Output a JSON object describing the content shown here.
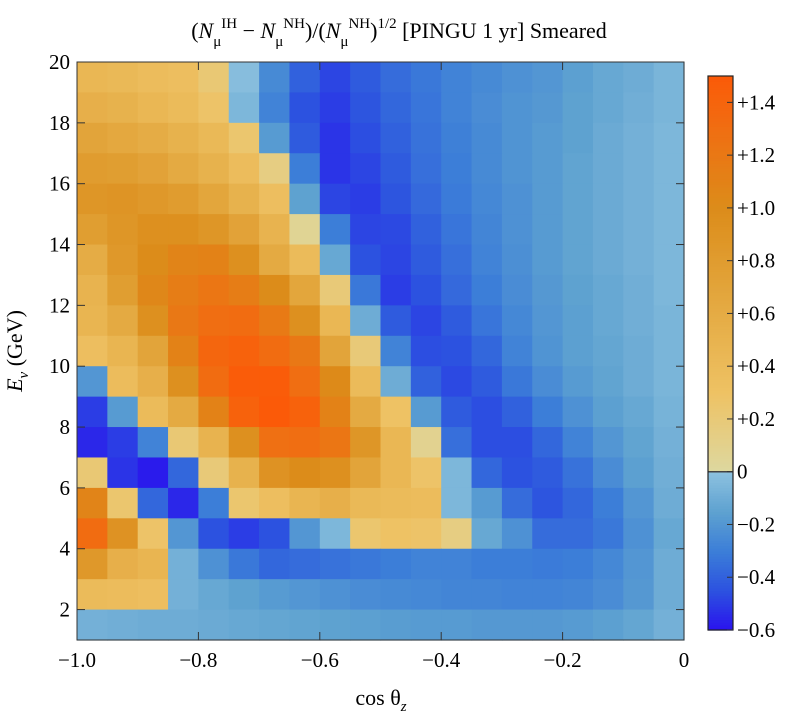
{
  "chart_data": {
    "type": "heatmap",
    "title": {
      "n1": "N",
      "sub1": "μ",
      "sup1": "IH",
      "minus": " − ",
      "n2": "N",
      "sub2": "μ",
      "sup2": "NH",
      "mid": ")/(",
      "n3": "N",
      "sub3": "μ",
      "sup3": "NH",
      "pow": "1/2",
      "tail": " [PINGU 1 yr] Smeared"
    },
    "xlabel": {
      "main": "cos θ",
      "sub": "z"
    },
    "ylabel": {
      "main": "E",
      "sub": "ν",
      "unit": " (GeV)"
    },
    "xlim": [
      -1.0,
      0.0
    ],
    "ylim": [
      1,
      20
    ],
    "x_bins": 20,
    "y_bins": 19,
    "x_ticks": [
      {
        "value": -1.0,
        "label": "−1.0"
      },
      {
        "value": -0.8,
        "label": "−0.8"
      },
      {
        "value": -0.6,
        "label": "−0.6"
      },
      {
        "value": -0.4,
        "label": "−0.4"
      },
      {
        "value": -0.2,
        "label": "−0.2"
      },
      {
        "value": 0.0,
        "label": "0"
      }
    ],
    "y_ticks": [
      {
        "value": 2,
        "label": "2"
      },
      {
        "value": 4,
        "label": "4"
      },
      {
        "value": 6,
        "label": "6"
      },
      {
        "value": 8,
        "label": "8"
      },
      {
        "value": 10,
        "label": "10"
      },
      {
        "value": 12,
        "label": "12"
      },
      {
        "value": 14,
        "label": "14"
      },
      {
        "value": 16,
        "label": "16"
      },
      {
        "value": 18,
        "label": "18"
      },
      {
        "value": 20,
        "label": "20"
      }
    ],
    "colorbar": {
      "range": [
        -0.6,
        1.5
      ],
      "ticks": [
        {
          "value": 1.4,
          "label": "+1.4"
        },
        {
          "value": 1.2,
          "label": "+1.2"
        },
        {
          "value": 1.0,
          "label": "+1.0"
        },
        {
          "value": 0.8,
          "label": "+0.8"
        },
        {
          "value": 0.6,
          "label": "+0.6"
        },
        {
          "value": 0.4,
          "label": "+0.4"
        },
        {
          "value": 0.2,
          "label": "+0.2"
        },
        {
          "value": 0.0,
          "label": "0"
        },
        {
          "value": -0.2,
          "label": "−0.2"
        },
        {
          "value": -0.4,
          "label": "−0.4"
        },
        {
          "value": -0.6,
          "label": "−0.6"
        }
      ]
    },
    "z_rows_top_to_bottom": [
      [
        0.45,
        0.42,
        0.38,
        0.35,
        0.22,
        -0.02,
        -0.25,
        -0.4,
        -0.48,
        -0.42,
        -0.36,
        -0.32,
        -0.28,
        -0.25,
        -0.22,
        -0.2,
        -0.16,
        -0.12,
        -0.1,
        -0.06
      ],
      [
        0.55,
        0.52,
        0.45,
        0.4,
        0.28,
        -0.05,
        -0.28,
        -0.45,
        -0.5,
        -0.44,
        -0.38,
        -0.33,
        -0.28,
        -0.24,
        -0.21,
        -0.19,
        -0.15,
        -0.12,
        -0.09,
        -0.06
      ],
      [
        0.7,
        0.65,
        0.6,
        0.52,
        0.42,
        0.25,
        -0.18,
        -0.42,
        -0.52,
        -0.46,
        -0.4,
        -0.34,
        -0.29,
        -0.25,
        -0.21,
        -0.18,
        -0.15,
        -0.11,
        -0.08,
        -0.05
      ],
      [
        0.8,
        0.78,
        0.72,
        0.62,
        0.52,
        0.38,
        0.15,
        -0.3,
        -0.52,
        -0.48,
        -0.42,
        -0.35,
        -0.3,
        -0.25,
        -0.21,
        -0.18,
        -0.14,
        -0.11,
        -0.08,
        -0.05
      ],
      [
        0.88,
        0.9,
        0.85,
        0.8,
        0.68,
        0.52,
        0.35,
        -0.15,
        -0.48,
        -0.5,
        -0.44,
        -0.37,
        -0.31,
        -0.26,
        -0.22,
        -0.18,
        -0.14,
        -0.11,
        -0.08,
        -0.05
      ],
      [
        0.78,
        0.88,
        0.95,
        0.95,
        0.88,
        0.72,
        0.5,
        0.06,
        -0.3,
        -0.48,
        -0.47,
        -0.4,
        -0.33,
        -0.27,
        -0.22,
        -0.18,
        -0.14,
        -0.11,
        -0.08,
        -0.05
      ],
      [
        0.6,
        0.85,
        1.0,
        1.08,
        1.1,
        0.95,
        0.62,
        0.4,
        -0.12,
        -0.45,
        -0.48,
        -0.42,
        -0.35,
        -0.28,
        -0.23,
        -0.18,
        -0.14,
        -0.11,
        -0.08,
        -0.05
      ],
      [
        0.5,
        0.78,
        1.05,
        1.15,
        1.22,
        1.15,
        1.0,
        0.68,
        0.2,
        -0.32,
        -0.5,
        -0.45,
        -0.37,
        -0.3,
        -0.24,
        -0.19,
        -0.15,
        -0.12,
        -0.09,
        -0.05
      ],
      [
        0.48,
        0.62,
        0.95,
        1.2,
        1.3,
        1.32,
        1.18,
        0.95,
        0.45,
        -0.1,
        -0.42,
        -0.48,
        -0.42,
        -0.33,
        -0.26,
        -0.2,
        -0.16,
        -0.12,
        -0.09,
        -0.06
      ],
      [
        0.35,
        0.48,
        0.7,
        1.1,
        1.38,
        1.42,
        1.32,
        1.2,
        0.7,
        0.2,
        -0.28,
        -0.46,
        -0.45,
        -0.38,
        -0.28,
        -0.21,
        -0.16,
        -0.13,
        -0.1,
        -0.06
      ],
      [
        -0.2,
        0.38,
        0.55,
        0.95,
        1.32,
        1.48,
        1.48,
        1.3,
        1.02,
        0.4,
        -0.1,
        -0.4,
        -0.47,
        -0.42,
        -0.32,
        -0.24,
        -0.18,
        -0.14,
        -0.1,
        -0.06
      ],
      [
        -0.5,
        -0.18,
        0.4,
        0.62,
        1.1,
        1.42,
        1.5,
        1.42,
        1.1,
        0.62,
        0.3,
        -0.18,
        -0.42,
        -0.46,
        -0.4,
        -0.3,
        -0.22,
        -0.16,
        -0.12,
        -0.07
      ],
      [
        -0.55,
        -0.5,
        -0.28,
        0.22,
        0.5,
        0.95,
        1.28,
        1.3,
        1.22,
        0.88,
        0.45,
        0.08,
        -0.35,
        -0.46,
        -0.46,
        -0.38,
        -0.28,
        -0.2,
        -0.14,
        -0.08
      ],
      [
        0.22,
        -0.52,
        -0.58,
        -0.38,
        0.2,
        0.52,
        0.92,
        1.0,
        0.95,
        0.7,
        0.45,
        0.28,
        -0.05,
        -0.38,
        -0.45,
        -0.42,
        -0.34,
        -0.24,
        -0.16,
        -0.09
      ],
      [
        1.08,
        0.25,
        -0.38,
        -0.55,
        -0.3,
        0.25,
        0.35,
        0.48,
        0.55,
        0.42,
        0.4,
        0.38,
        -0.05,
        -0.18,
        -0.36,
        -0.44,
        -0.38,
        -0.3,
        -0.2,
        -0.1
      ],
      [
        1.32,
        0.92,
        0.28,
        -0.2,
        -0.45,
        -0.5,
        -0.45,
        -0.2,
        -0.05,
        0.25,
        0.3,
        0.28,
        0.15,
        -0.12,
        -0.22,
        -0.36,
        -0.36,
        -0.32,
        -0.22,
        -0.12
      ],
      [
        0.85,
        0.55,
        0.48,
        -0.08,
        -0.22,
        -0.32,
        -0.38,
        -0.36,
        -0.34,
        -0.32,
        -0.3,
        -0.28,
        -0.28,
        -0.3,
        -0.3,
        -0.31,
        -0.3,
        -0.26,
        -0.2,
        -0.1
      ],
      [
        0.4,
        0.38,
        0.35,
        -0.08,
        -0.12,
        -0.15,
        -0.18,
        -0.2,
        -0.22,
        -0.24,
        -0.25,
        -0.26,
        -0.27,
        -0.27,
        -0.28,
        -0.28,
        -0.27,
        -0.24,
        -0.19,
        -0.1
      ],
      [
        -0.08,
        -0.09,
        -0.1,
        -0.1,
        -0.11,
        -0.12,
        -0.13,
        -0.14,
        -0.15,
        -0.16,
        -0.17,
        -0.18,
        -0.18,
        -0.19,
        -0.19,
        -0.19,
        -0.18,
        -0.16,
        -0.13,
        -0.08
      ]
    ],
    "colorscale": {
      "positive": [
        {
          "v": 0.0,
          "c": "#ddd8a0"
        },
        {
          "v": 0.3,
          "c": "#eec264"
        },
        {
          "v": 0.7,
          "c": "#e2a43a"
        },
        {
          "v": 1.0,
          "c": "#dc8c1a"
        },
        {
          "v": 1.3,
          "c": "#f06e12"
        },
        {
          "v": 1.5,
          "c": "#fb5a08"
        }
      ],
      "negative": [
        {
          "v": 0.0,
          "c": "#8dc1df"
        },
        {
          "v": -0.15,
          "c": "#5ea2d0"
        },
        {
          "v": -0.3,
          "c": "#3c7ed8"
        },
        {
          "v": -0.45,
          "c": "#2c52e0"
        },
        {
          "v": -0.6,
          "c": "#2a12ee"
        }
      ]
    }
  }
}
